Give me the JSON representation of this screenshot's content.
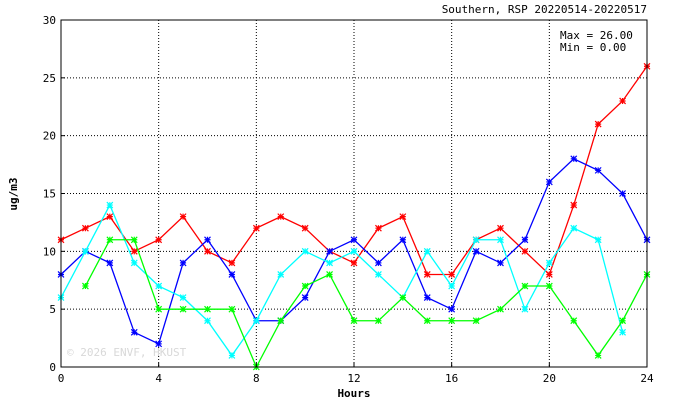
{
  "chart_data": {
    "type": "line",
    "title": "Southern, RSP 20220514-20220517",
    "xlabel": "Hours",
    "ylabel": "ug/m3",
    "xlim": [
      0,
      24
    ],
    "ylim": [
      0,
      30
    ],
    "xticks": [
      0,
      4,
      8,
      12,
      16,
      20,
      24
    ],
    "yticks": [
      0,
      5,
      10,
      15,
      20,
      25,
      30
    ],
    "grid": true,
    "stats": {
      "max": "Max = 26.00",
      "min": "Min =  0.00"
    },
    "watermark": "© 2026 ENVF, HKUST",
    "x": [
      0,
      1,
      2,
      3,
      4,
      5,
      6,
      7,
      8,
      9,
      10,
      11,
      12,
      13,
      14,
      15,
      16,
      17,
      18,
      19,
      20,
      21,
      22,
      23,
      24
    ],
    "series": [
      {
        "color": "#ff0000",
        "values": [
          11,
          12,
          13,
          10,
          11,
          13,
          10,
          9,
          12,
          13,
          12,
          10,
          9,
          12,
          13,
          8,
          8,
          11,
          12,
          10,
          8,
          14,
          21,
          23,
          26
        ]
      },
      {
        "color": "#0000ff",
        "values": [
          8,
          10,
          9,
          3,
          2,
          9,
          11,
          8,
          4,
          4,
          6,
          10,
          11,
          9,
          11,
          6,
          5,
          10,
          9,
          11,
          16,
          18,
          17,
          15,
          11
        ]
      },
      {
        "color": "#00ffff",
        "values": [
          6,
          10,
          14,
          9,
          7,
          6,
          4,
          1,
          4,
          8,
          10,
          9,
          10,
          8,
          6,
          10,
          7,
          11,
          11,
          5,
          9,
          12,
          11,
          3,
          null
        ]
      },
      {
        "color": "#00ff00",
        "values": [
          null,
          7,
          11,
          11,
          5,
          5,
          5,
          5,
          0,
          4,
          7,
          8,
          4,
          4,
          6,
          4,
          4,
          4,
          5,
          7,
          7,
          4,
          1,
          4,
          8
        ]
      }
    ]
  }
}
